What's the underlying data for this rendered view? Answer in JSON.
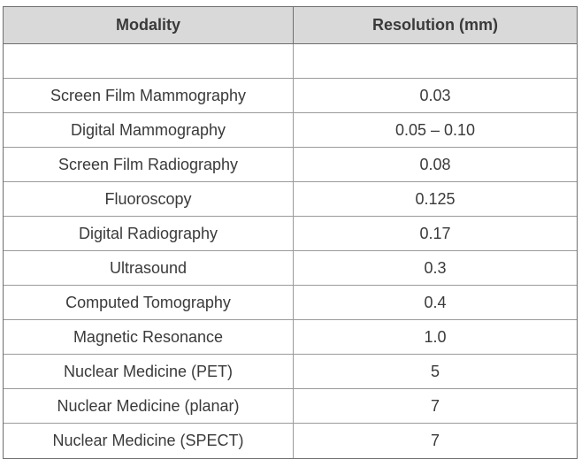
{
  "table": {
    "headers": {
      "modality": "Modality",
      "resolution": "Resolution (mm)"
    },
    "rows": [
      {
        "modality": "Screen Film Mammography",
        "resolution": "0.03"
      },
      {
        "modality": "Digital Mammography",
        "resolution": "0.05 – 0.10"
      },
      {
        "modality": "Screen Film Radiography",
        "resolution": "0.08"
      },
      {
        "modality": "Fluoroscopy",
        "resolution": "0.125"
      },
      {
        "modality": "Digital Radiography",
        "resolution": "0.17"
      },
      {
        "modality": "Ultrasound",
        "resolution": "0.3"
      },
      {
        "modality": "Computed Tomography",
        "resolution": "0.4"
      },
      {
        "modality": "Magnetic Resonance",
        "resolution": "1.0"
      },
      {
        "modality": "Nuclear Medicine (PET)",
        "resolution": "5"
      },
      {
        "modality": "Nuclear Medicine (planar)",
        "resolution": "7"
      },
      {
        "modality": "Nuclear Medicine (SPECT)",
        "resolution": "7"
      }
    ]
  }
}
